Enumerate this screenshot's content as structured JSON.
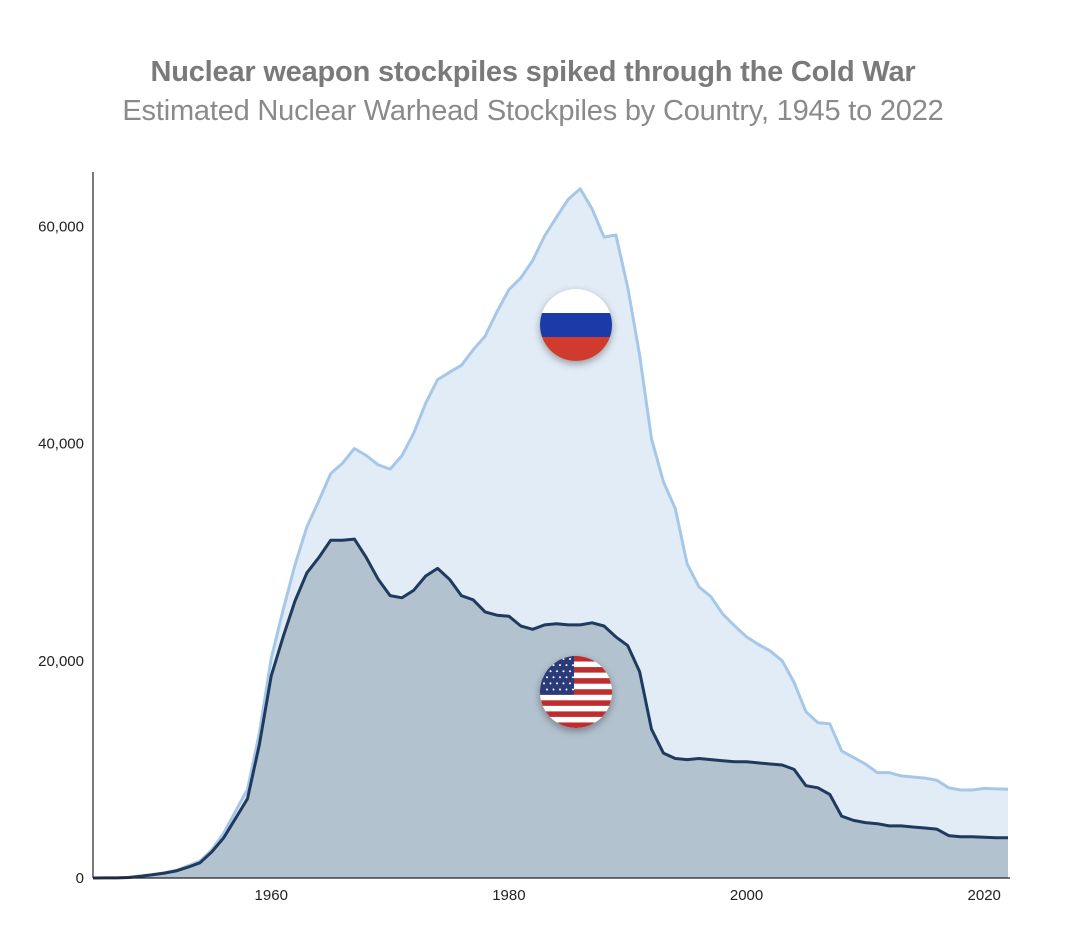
{
  "header": {
    "title": "Nuclear weapon stockpiles spiked through the Cold War",
    "subtitle": "Estimated Nuclear Warhead Stockpiles by Country, 1945 to 2022"
  },
  "chart_data": {
    "type": "area",
    "title": "Nuclear weapon stockpiles spiked through the Cold War",
    "subtitle": "Estimated Nuclear Warhead Stockpiles by Country, 1945 to 2022",
    "xlabel": "",
    "ylabel": "",
    "stacked": true,
    "xlim": [
      1945,
      2022
    ],
    "ylim": [
      0,
      65000
    ],
    "x_ticks": [
      1960,
      1980,
      2000,
      2020
    ],
    "y_ticks": [
      0,
      20000,
      40000,
      60000
    ],
    "y_tick_labels": [
      "0",
      "20,000",
      "40,000",
      "60,000"
    ],
    "x_tick_labels": [
      "1960",
      "1980",
      "2000",
      "2020"
    ],
    "grid": false,
    "legend": "none (flag icons inside areas)",
    "colors": {
      "russia_fill": "#e2ecf7",
      "russia_line": "#a6c8e8",
      "us_fill": "#b3c2cf",
      "us_line": "#1f3a5f"
    },
    "series": [
      {
        "id": "usa",
        "icon": "usa-flag-icon",
        "x": [
          1945,
          1946,
          1947,
          1948,
          1949,
          1950,
          1951,
          1952,
          1953,
          1954,
          1955,
          1956,
          1957,
          1958,
          1959,
          1960,
          1961,
          1962,
          1963,
          1964,
          1965,
          1966,
          1967,
          1968,
          1969,
          1970,
          1971,
          1972,
          1973,
          1974,
          1975,
          1976,
          1977,
          1978,
          1979,
          1980,
          1981,
          1982,
          1983,
          1984,
          1985,
          1986,
          1987,
          1988,
          1989,
          1990,
          1991,
          1992,
          1993,
          1994,
          1995,
          1996,
          1997,
          1998,
          1999,
          2000,
          2001,
          2002,
          2003,
          2004,
          2005,
          2006,
          2007,
          2008,
          2009,
          2010,
          2011,
          2012,
          2013,
          2014,
          2015,
          2016,
          2017,
          2018,
          2019,
          2020,
          2021,
          2022
        ],
        "values": [
          2,
          9,
          13,
          50,
          170,
          300,
          450,
          650,
          1000,
          1400,
          2400,
          3700,
          5500,
          7300,
          12300,
          18600,
          22200,
          25500,
          28100,
          29500,
          31100,
          31100,
          31200,
          29500,
          27500,
          26000,
          25800,
          26500,
          27800,
          28500,
          27500,
          26000,
          25600,
          24500,
          24200,
          24100,
          23200,
          22900,
          23300,
          23400,
          23300,
          23300,
          23500,
          23200,
          22200,
          21400,
          19000,
          13700,
          11500,
          11000,
          10900,
          11000,
          10900,
          10800,
          10700,
          10700,
          10600,
          10500,
          10400,
          10000,
          8500,
          8300,
          7700,
          5700,
          5300,
          5100,
          5000,
          4800,
          4800,
          4700,
          4600,
          4500,
          3900,
          3800,
          3800,
          3750,
          3700,
          3700
        ]
      },
      {
        "id": "russia",
        "icon": "russia-flag-icon",
        "x": [
          1945,
          1946,
          1947,
          1948,
          1949,
          1950,
          1951,
          1952,
          1953,
          1954,
          1955,
          1956,
          1957,
          1958,
          1959,
          1960,
          1961,
          1962,
          1963,
          1964,
          1965,
          1966,
          1967,
          1968,
          1969,
          1970,
          1971,
          1972,
          1973,
          1974,
          1975,
          1976,
          1977,
          1978,
          1979,
          1980,
          1981,
          1982,
          1983,
          1984,
          1985,
          1986,
          1987,
          1988,
          1989,
          1990,
          1991,
          1992,
          1993,
          1994,
          1995,
          1996,
          1997,
          1998,
          1999,
          2000,
          2001,
          2002,
          2003,
          2004,
          2005,
          2006,
          2007,
          2008,
          2009,
          2010,
          2011,
          2012,
          2013,
          2014,
          2015,
          2016,
          2017,
          2018,
          2019,
          2020,
          2021,
          2022
        ],
        "values": [
          0,
          0,
          0,
          0,
          1,
          5,
          25,
          50,
          120,
          150,
          200,
          426,
          660,
          869,
          1060,
          1605,
          2471,
          3322,
          4238,
          5221,
          6129,
          7089,
          8339,
          9399,
          10538,
          11643,
          13092,
          14478,
          15915,
          17385,
          19055,
          21205,
          23044,
          25393,
          27935,
          30062,
          32049,
          33952,
          35804,
          37431,
          39197,
          40159,
          38107,
          35805,
          37000,
          32980,
          29154,
          26734,
          25000,
          23000,
          18000,
          15800,
          15000,
          13500,
          12500,
          11500,
          10900,
          10400,
          9600,
          8000,
          6800,
          6000,
          6500,
          6000,
          5800,
          5400,
          4700,
          4900,
          4600,
          4600,
          4600,
          4500,
          4400,
          4300,
          4300,
          4500,
          4500,
          4477
        ]
      }
    ]
  }
}
